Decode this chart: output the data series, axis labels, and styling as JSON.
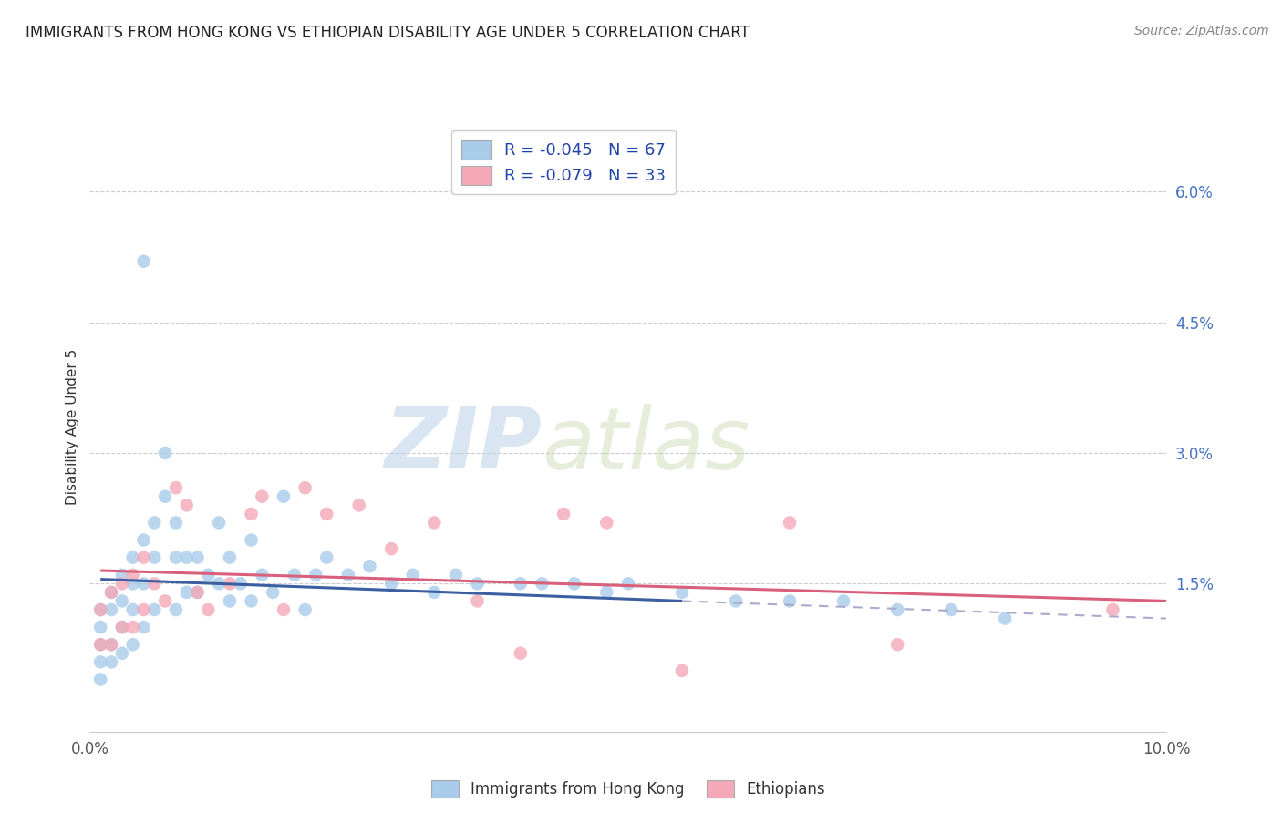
{
  "title": "IMMIGRANTS FROM HONG KONG VS ETHIOPIAN DISABILITY AGE UNDER 5 CORRELATION CHART",
  "source": "Source: ZipAtlas.com",
  "ylabel": "Disability Age Under 5",
  "legend_label_1": "Immigrants from Hong Kong",
  "legend_label_2": "Ethiopians",
  "r1": -0.045,
  "n1": 67,
  "r2": -0.079,
  "n2": 33,
  "xlim": [
    0.0,
    0.1
  ],
  "ylim": [
    -0.002,
    0.068
  ],
  "yticks": [
    0.0,
    0.015,
    0.03,
    0.045,
    0.06
  ],
  "ytick_labels": [
    "",
    "1.5%",
    "3.0%",
    "4.5%",
    "6.0%"
  ],
  "xticks": [
    0.0,
    0.02,
    0.04,
    0.06,
    0.08,
    0.1
  ],
  "xtick_labels": [
    "0.0%",
    "",
    "",
    "",
    "",
    "10.0%"
  ],
  "color_hk": "#A8CCEA",
  "color_eth": "#F4A8B8",
  "color_hk_line": "#3B5FA0",
  "color_eth_line": "#D9607A",
  "color_dash": "#AAAACC",
  "background": "#FFFFFF",
  "watermark_zip": "ZIP",
  "watermark_atlas": "atlas",
  "hk_x": [
    0.001,
    0.001,
    0.001,
    0.001,
    0.001,
    0.002,
    0.002,
    0.002,
    0.002,
    0.003,
    0.003,
    0.003,
    0.003,
    0.004,
    0.004,
    0.004,
    0.004,
    0.005,
    0.005,
    0.005,
    0.005,
    0.006,
    0.006,
    0.006,
    0.007,
    0.007,
    0.008,
    0.008,
    0.008,
    0.009,
    0.009,
    0.01,
    0.01,
    0.011,
    0.012,
    0.012,
    0.013,
    0.013,
    0.014,
    0.015,
    0.015,
    0.016,
    0.017,
    0.018,
    0.019,
    0.02,
    0.021,
    0.022,
    0.024,
    0.026,
    0.028,
    0.03,
    0.032,
    0.034,
    0.036,
    0.04,
    0.042,
    0.045,
    0.048,
    0.05,
    0.055,
    0.06,
    0.065,
    0.07,
    0.075,
    0.08,
    0.085
  ],
  "hk_y": [
    0.01,
    0.012,
    0.008,
    0.006,
    0.004,
    0.014,
    0.012,
    0.008,
    0.006,
    0.016,
    0.013,
    0.01,
    0.007,
    0.018,
    0.015,
    0.012,
    0.008,
    0.052,
    0.02,
    0.015,
    0.01,
    0.022,
    0.018,
    0.012,
    0.03,
    0.025,
    0.022,
    0.018,
    0.012,
    0.018,
    0.014,
    0.018,
    0.014,
    0.016,
    0.022,
    0.015,
    0.018,
    0.013,
    0.015,
    0.02,
    0.013,
    0.016,
    0.014,
    0.025,
    0.016,
    0.012,
    0.016,
    0.018,
    0.016,
    0.017,
    0.015,
    0.016,
    0.014,
    0.016,
    0.015,
    0.015,
    0.015,
    0.015,
    0.014,
    0.015,
    0.014,
    0.013,
    0.013,
    0.013,
    0.012,
    0.012,
    0.011
  ],
  "eth_x": [
    0.001,
    0.001,
    0.002,
    0.002,
    0.003,
    0.003,
    0.004,
    0.004,
    0.005,
    0.005,
    0.006,
    0.007,
    0.008,
    0.009,
    0.01,
    0.011,
    0.013,
    0.015,
    0.016,
    0.018,
    0.02,
    0.022,
    0.025,
    0.028,
    0.032,
    0.036,
    0.04,
    0.044,
    0.048,
    0.055,
    0.065,
    0.075,
    0.095
  ],
  "eth_y": [
    0.012,
    0.008,
    0.014,
    0.008,
    0.015,
    0.01,
    0.016,
    0.01,
    0.018,
    0.012,
    0.015,
    0.013,
    0.026,
    0.024,
    0.014,
    0.012,
    0.015,
    0.023,
    0.025,
    0.012,
    0.026,
    0.023,
    0.024,
    0.019,
    0.022,
    0.013,
    0.007,
    0.023,
    0.022,
    0.005,
    0.022,
    0.008,
    0.012
  ],
  "hk_line_x_start": 0.001,
  "hk_line_x_solid_end": 0.055,
  "hk_line_x_end": 0.1,
  "hk_line_y_start": 0.0155,
  "hk_line_y_solid_end": 0.013,
  "hk_line_y_end": 0.011,
  "eth_line_x_start": 0.001,
  "eth_line_x_solid_end": 0.1,
  "eth_line_y_start": 0.0165,
  "eth_line_y_end": 0.013
}
